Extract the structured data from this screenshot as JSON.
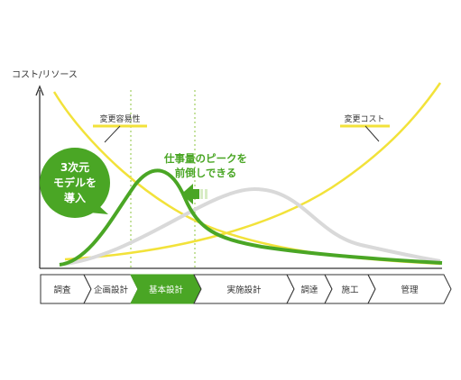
{
  "y_axis_label": "コスト/リソース",
  "labels": {
    "change_ease": "変更容易性",
    "change_cost": "変更コスト",
    "peak_shift_line1": "仕事量のピークを",
    "peak_shift_line2": "前倒しできる",
    "badge_line1": "3次元",
    "badge_line2": "モデルを",
    "badge_line3": "導入"
  },
  "phases": [
    {
      "label": "調査",
      "highlighted": false
    },
    {
      "label": "企画設計",
      "highlighted": false
    },
    {
      "label": "基本設計",
      "highlighted": true
    },
    {
      "label": "実施設計",
      "highlighted": false
    },
    {
      "label": "調達",
      "highlighted": false
    },
    {
      "label": "施工",
      "highlighted": false
    },
    {
      "label": "管理",
      "highlighted": false
    }
  ],
  "colors": {
    "accent_green": "#4aa625",
    "light_green": "#8cc63f",
    "yellow": "#f2e23a",
    "gray_curve": "#d9d9d9",
    "axis": "#333333"
  }
}
